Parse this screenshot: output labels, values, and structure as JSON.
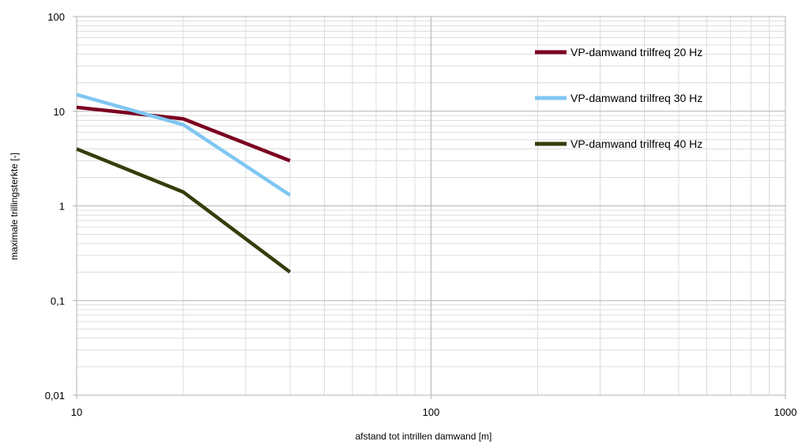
{
  "chart_data": {
    "type": "line",
    "title": "",
    "xlabel": "afstand tot intrillen damwand [m]",
    "ylabel": "maximale trillingsterkte [-]",
    "x_scale": "log",
    "y_scale": "log",
    "xlim": [
      10,
      1000
    ],
    "ylim": [
      0.01,
      100
    ],
    "grid": true,
    "legend_position": "top-right",
    "x_ticks": [
      {
        "value": 10,
        "label": "10"
      },
      {
        "value": 100,
        "label": "100"
      },
      {
        "value": 1000,
        "label": "1000"
      }
    ],
    "y_ticks": [
      {
        "value": 100,
        "label": "100"
      },
      {
        "value": 10,
        "label": "10"
      },
      {
        "value": 1,
        "label": "1"
      },
      {
        "value": 0.1,
        "label": "0,1"
      },
      {
        "value": 0.01,
        "label": "0,01"
      }
    ],
    "series": [
      {
        "name": "VP-damwand trilfreq 20 Hz",
        "color": "#7b0020",
        "x": [
          10,
          20,
          40
        ],
        "y": [
          11,
          8.3,
          3.0
        ]
      },
      {
        "name": "VP-damwand trilfreq 30 Hz",
        "color": "#7fc6f2",
        "x": [
          10,
          20,
          40
        ],
        "y": [
          15,
          7.2,
          1.3
        ]
      },
      {
        "name": "VP-damwand trilfreq 40 Hz",
        "color": "#333e0a",
        "x": [
          10,
          20,
          40
        ],
        "y": [
          4.0,
          1.4,
          0.2
        ]
      }
    ]
  }
}
